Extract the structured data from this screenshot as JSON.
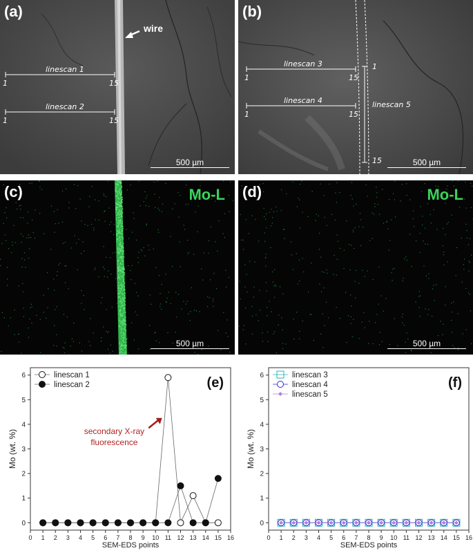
{
  "panels": {
    "a": {
      "label": "(a)",
      "wire_label": "wire",
      "linescan1": {
        "name": "linescan 1",
        "start": "1",
        "end": "15"
      },
      "linescan2": {
        "name": "linescan 2",
        "start": "1",
        "end": "15"
      },
      "scale": "500 µm"
    },
    "b": {
      "label": "(b)",
      "linescan3": {
        "name": "linescan 3",
        "start": "1",
        "end": "15"
      },
      "linescan4": {
        "name": "linescan 4",
        "start": "1",
        "end": "15"
      },
      "linescan5": {
        "name": "linescan 5",
        "start": "1",
        "end": "15"
      },
      "scale": "500 µm"
    },
    "c": {
      "label": "(c)",
      "element": "Mo-L",
      "scale": "500 µm"
    },
    "d": {
      "label": "(d)",
      "element": "Mo-L",
      "scale": "500 µm"
    }
  },
  "chart_data": [
    {
      "panel": "(e)",
      "type": "scatter",
      "xlabel": "SEM-EDS points",
      "ylabel": "Mo (wt. %)",
      "xlim": [
        0,
        16
      ],
      "ylim": [
        -0.3,
        6.3
      ],
      "xticks": [
        "0",
        "1",
        "2",
        "3",
        "4",
        "5",
        "6",
        "7",
        "8",
        "9",
        "10",
        "11",
        "12",
        "13",
        "14",
        "15",
        "16"
      ],
      "yticks": [
        "0",
        "1",
        "2",
        "3",
        "4",
        "5",
        "6"
      ],
      "annotation": [
        "secondary X-ray",
        "fluorescence"
      ],
      "legend_position": "top-left",
      "series": [
        {
          "name": "linescan 1",
          "marker": "open-circle",
          "x": [
            1,
            2,
            3,
            4,
            5,
            6,
            7,
            8,
            9,
            10,
            11,
            12,
            13,
            14,
            15
          ],
          "values": [
            0,
            0,
            0,
            0,
            0,
            0,
            0,
            0,
            0,
            0,
            5.9,
            0,
            1.1,
            0,
            0
          ]
        },
        {
          "name": "linescan 2",
          "marker": "filled-circle",
          "x": [
            1,
            2,
            3,
            4,
            5,
            6,
            7,
            8,
            9,
            10,
            11,
            12,
            13,
            14,
            15
          ],
          "values": [
            0,
            0,
            0,
            0,
            0,
            0,
            0,
            0,
            0,
            0,
            0,
            1.5,
            0,
            0,
            1.8
          ]
        }
      ]
    },
    {
      "panel": "(f)",
      "type": "scatter",
      "xlabel": "SEM-EDS points",
      "ylabel": "Mo (wt. %)",
      "xlim": [
        0,
        16
      ],
      "ylim": [
        -0.3,
        6.3
      ],
      "xticks": [
        "0",
        "1",
        "2",
        "3",
        "4",
        "5",
        "6",
        "7",
        "8",
        "9",
        "10",
        "11",
        "12",
        "13",
        "14",
        "15",
        "16"
      ],
      "yticks": [
        "0",
        "1",
        "2",
        "3",
        "4",
        "5",
        "6"
      ],
      "legend_position": "top-left",
      "series": [
        {
          "name": "linescan 3",
          "marker": "open-square",
          "color": "#27b3b3",
          "x": [
            1,
            2,
            3,
            4,
            5,
            6,
            7,
            8,
            9,
            10,
            11,
            12,
            13,
            14,
            15
          ],
          "values": [
            0,
            0,
            0,
            0,
            0,
            0,
            0,
            0,
            0,
            0,
            0,
            0,
            0,
            0,
            0
          ]
        },
        {
          "name": "linescan 4",
          "marker": "open-circle",
          "color": "#2a2ad0",
          "x": [
            1,
            2,
            3,
            4,
            5,
            6,
            7,
            8,
            9,
            10,
            11,
            12,
            13,
            14,
            15
          ],
          "values": [
            0,
            0,
            0,
            0,
            0,
            0,
            0,
            0,
            0,
            0,
            0,
            0,
            0,
            0,
            0
          ]
        },
        {
          "name": "linescan 5",
          "marker": "filled-diamond",
          "color": "#b07ee0",
          "x": [
            1,
            2,
            3,
            4,
            5,
            6,
            7,
            8,
            9,
            10,
            11,
            12,
            13,
            14,
            15
          ],
          "values": [
            0,
            0,
            0,
            0,
            0,
            0,
            0,
            0,
            0,
            0,
            0,
            0,
            0,
            0,
            0
          ]
        }
      ]
    }
  ]
}
